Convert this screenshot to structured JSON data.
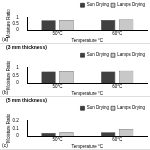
{
  "chart_data": [
    {
      "type": "bar",
      "annotation": "(a)",
      "x_label": "Temperature °C",
      "y_label": "Moisture Ratio",
      "categories": [
        "50°C",
        "60°C"
      ],
      "series": [
        {
          "name": "Sun Drying",
          "color": "#404040",
          "values": [
            0.78,
            0.8
          ]
        },
        {
          "name": "Lamps Drying",
          "color": "#c8c8c8",
          "values": [
            0.8,
            0.84
          ]
        }
      ],
      "ylim": [
        0,
        1
      ],
      "yticks": [
        0,
        0.5,
        1
      ],
      "legend": "top-right",
      "grid": false
    },
    {
      "type": "bar",
      "title": "(3 mm thickness)",
      "annotation": "(b)",
      "x_label": "Temperature °C",
      "y_label": "Moisture Ratio",
      "categories": [
        "50°C",
        "60°C"
      ],
      "series": [
        {
          "name": "Sun Drying",
          "color": "#404040",
          "values": [
            0.74,
            0.75
          ]
        },
        {
          "name": "Lamps Drying",
          "color": "#c8c8c8",
          "values": [
            0.77,
            0.8
          ]
        }
      ],
      "ylim": [
        0,
        1
      ],
      "yticks": [
        0,
        0.5,
        1
      ],
      "legend": "top-right",
      "grid": false
    },
    {
      "type": "bar",
      "title": "(5 mm thickness)",
      "annotation": "(c)",
      "x_label": "Temperature °C",
      "y_label": "Moisture Ratio",
      "categories": [
        "50°C",
        "60°C"
      ],
      "series": [
        {
          "name": "Sun Drying",
          "color": "#404040",
          "values": [
            0.04,
            0.05
          ]
        },
        {
          "name": "Lamps Drying",
          "color": "#c8c8c8",
          "values": [
            0.05,
            0.09
          ]
        }
      ],
      "ylim": [
        0,
        0.2
      ],
      "yticks": [
        0,
        0.1,
        0.2
      ],
      "legend": "top-right",
      "grid": false
    }
  ]
}
